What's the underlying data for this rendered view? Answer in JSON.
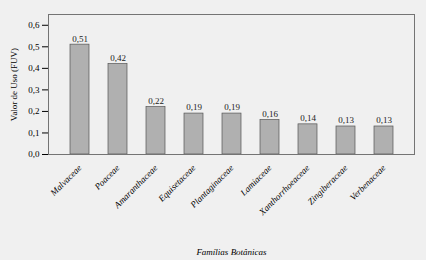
{
  "chart_data": {
    "type": "bar",
    "categories": [
      "Malvaceae",
      "Poaceae",
      "Amaranthaceae",
      "Equisetaceae",
      "Plantaginaceae",
      "Lamiaceae",
      "Xanthorrhoeaceae",
      "Zingiberaceae",
      "Verbenaceae"
    ],
    "values": [
      0.51,
      0.42,
      0.22,
      0.19,
      0.19,
      0.16,
      0.14,
      0.13,
      0.13
    ],
    "value_labels": [
      "0,51",
      "0,42",
      "0,22",
      "0,19",
      "0,19",
      "0,16",
      "0,14",
      "0,13",
      "0,13"
    ],
    "data_labels": true,
    "color": "#b0b0b0",
    "xlabel": "Famílias Botânicas",
    "ylabel": "Valor de Uso (FUV)",
    "ylim": [
      0.0,
      0.65
    ],
    "yticks": [
      {
        "value": 0.0,
        "label": "0,0"
      },
      {
        "value": 0.1,
        "label": "0,1"
      },
      {
        "value": 0.2,
        "label": "0,2"
      },
      {
        "value": 0.3,
        "label": "0,3"
      },
      {
        "value": 0.4,
        "label": "0,4"
      },
      {
        "value": 0.5,
        "label": "0,5"
      },
      {
        "value": 0.6,
        "label": "0,6"
      }
    ],
    "grid": false
  }
}
